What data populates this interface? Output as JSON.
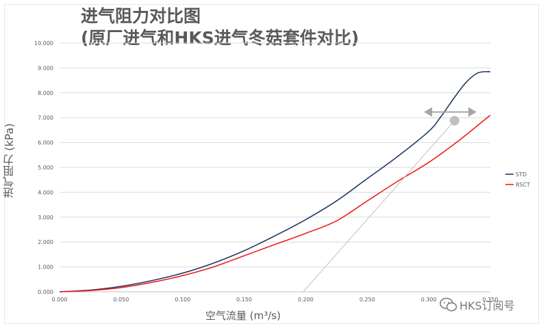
{
  "title_line1": "进气阻力对比图",
  "title_line2": "(原厂进气和HKS进气冬菇套件对比)",
  "watermark": "HKS订阅号",
  "chart_data": {
    "type": "line",
    "title": "进气阻力对比图 (原厂进气和HKS进气冬菇套件对比)",
    "xlabel": "空气流量 (m³/s)",
    "ylabel": "进气阻力 (kPa)",
    "xlim": [
      0,
      0.35
    ],
    "ylim": [
      0,
      10
    ],
    "x_ticks": [
      "0.000",
      "0.050",
      "0.100",
      "0.150",
      "0.200",
      "0.250",
      "0.300",
      "0.350"
    ],
    "y_ticks": [
      "0.000",
      "1.000",
      "2.000",
      "3.000",
      "4.000",
      "5.000",
      "6.000",
      "7.000",
      "8.000",
      "9.000",
      "10.000"
    ],
    "grid": "horizontal",
    "legend_position": "right",
    "series": [
      {
        "name": "STD",
        "color": "#1f3864",
        "x": [
          0,
          0.025,
          0.05,
          0.075,
          0.1,
          0.125,
          0.15,
          0.175,
          0.2,
          0.225,
          0.25,
          0.275,
          0.3,
          0.31,
          0.32,
          0.33,
          0.34,
          0.35
        ],
        "y": [
          0,
          0.07,
          0.22,
          0.45,
          0.75,
          1.15,
          1.65,
          2.25,
          2.9,
          3.65,
          4.55,
          5.45,
          6.45,
          7.05,
          7.75,
          8.4,
          8.8,
          8.85
        ]
      },
      {
        "name": "RSCT",
        "color": "#ee1c1c",
        "x": [
          0,
          0.025,
          0.05,
          0.075,
          0.1,
          0.125,
          0.15,
          0.175,
          0.2,
          0.225,
          0.25,
          0.275,
          0.3,
          0.325,
          0.35
        ],
        "y": [
          0,
          0.05,
          0.17,
          0.38,
          0.65,
          1.0,
          1.45,
          1.9,
          2.35,
          2.85,
          3.65,
          4.45,
          5.2,
          6.1,
          7.1
        ]
      }
    ],
    "annotation": {
      "type": "double-arrow-with-pointer",
      "arrow_color": "#a6a6a6",
      "pointer_line_color": "#bfbfbf",
      "dot_color": "#bfbfbf",
      "arrow_x": [
        0.3,
        0.335
      ],
      "arrow_y": 7.2,
      "dot": [
        0.321,
        6.88
      ],
      "pointer_end": [
        0.198,
        0
      ]
    }
  }
}
